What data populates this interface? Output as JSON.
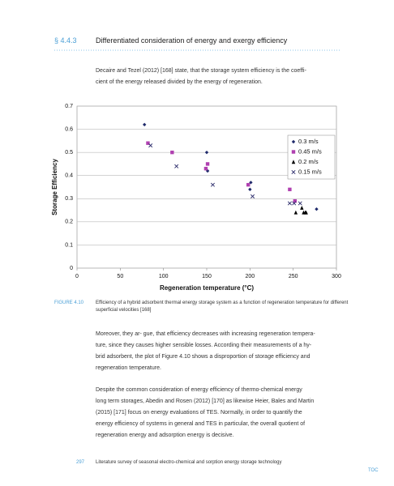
{
  "section": {
    "number": "§ 4.4.3",
    "title": "Differentiated consideration of energy and exergy efficiency"
  },
  "intro": [
    "Decaire and Tezel (2012) [168] state, that the storage system efficiency is the coeffi-",
    "cient of the energy released divided by the energy of regeneration."
  ],
  "chart_data": {
    "type": "scatter",
    "x_label": "Regeneration temperature (°C)",
    "y_label": "Storage Efficiency",
    "xlim": [
      0,
      300
    ],
    "xticks": [
      0,
      50,
      100,
      150,
      200,
      250,
      300
    ],
    "ylim": [
      0,
      0.7
    ],
    "yticks": [
      0,
      0.1,
      0.2,
      0.3,
      0.4,
      0.5,
      0.6,
      0.7
    ],
    "grid": true,
    "legend": "upper right",
    "series": [
      {
        "name": "0.3 m/s",
        "color": "#1f2a6b",
        "marker": "diamond",
        "x": [
          78,
          150,
          151,
          201,
          200,
          277
        ],
        "values": [
          0.62,
          0.5,
          0.42,
          0.37,
          0.34,
          0.255
        ]
      },
      {
        "name": "0.45 m/s",
        "color": "#b040b0",
        "marker": "square",
        "x": [
          82,
          110,
          151,
          149,
          198,
          246,
          252
        ],
        "values": [
          0.54,
          0.5,
          0.45,
          0.43,
          0.36,
          0.34,
          0.29
        ]
      },
      {
        "name": "0.2 m/s",
        "color": "#000000",
        "marker": "triangle",
        "x": [
          253,
          260,
          262,
          264,
          265
        ],
        "values": [
          0.24,
          0.26,
          0.24,
          0.24,
          0.24
        ]
      },
      {
        "name": "0.15 m/s",
        "color": "#2a2a6a",
        "marker": "x",
        "x": [
          85,
          115,
          157,
          203,
          246,
          251,
          258
        ],
        "values": [
          0.53,
          0.44,
          0.36,
          0.31,
          0.28,
          0.28,
          0.28
        ]
      }
    ]
  },
  "caption": {
    "label": "FIGURE 4.10",
    "lines": [
      "Efficiency of a hybrid adsorbent thermal energy storage system as a function of regeneration temperature for different",
      "superficial velocities [168]"
    ]
  },
  "paragraphs": [
    [
      "Moreover, they ar- gue, that efficiency decreases with increasing regeneration tempera-",
      "ture, since they causes higher sensible losses. According their measurements of a hy-",
      "brid adsorbent, the plot of Figure 4.10 shows a disproportion of storage efficiency and",
      "regeneration temperature."
    ],
    [
      "Despite the common consideration of energy efficiency of thermo-chemical energy",
      "long term storages, Abedin and Rosen (2012) [170] as likewise Heier, Bales and Martin",
      "(2015) [171] focus on energy evaluations of TES. Normally, in order to quantify the",
      "energy efficiency of systems in general and TES in particular, the overall quotient of",
      "regeneration energy and adsorption energy is decisive."
    ]
  ],
  "footer": {
    "page": "297",
    "text": "Literature survey of seasonal electro-chemical and sorption energy storage technology",
    "toc": "TOC"
  }
}
